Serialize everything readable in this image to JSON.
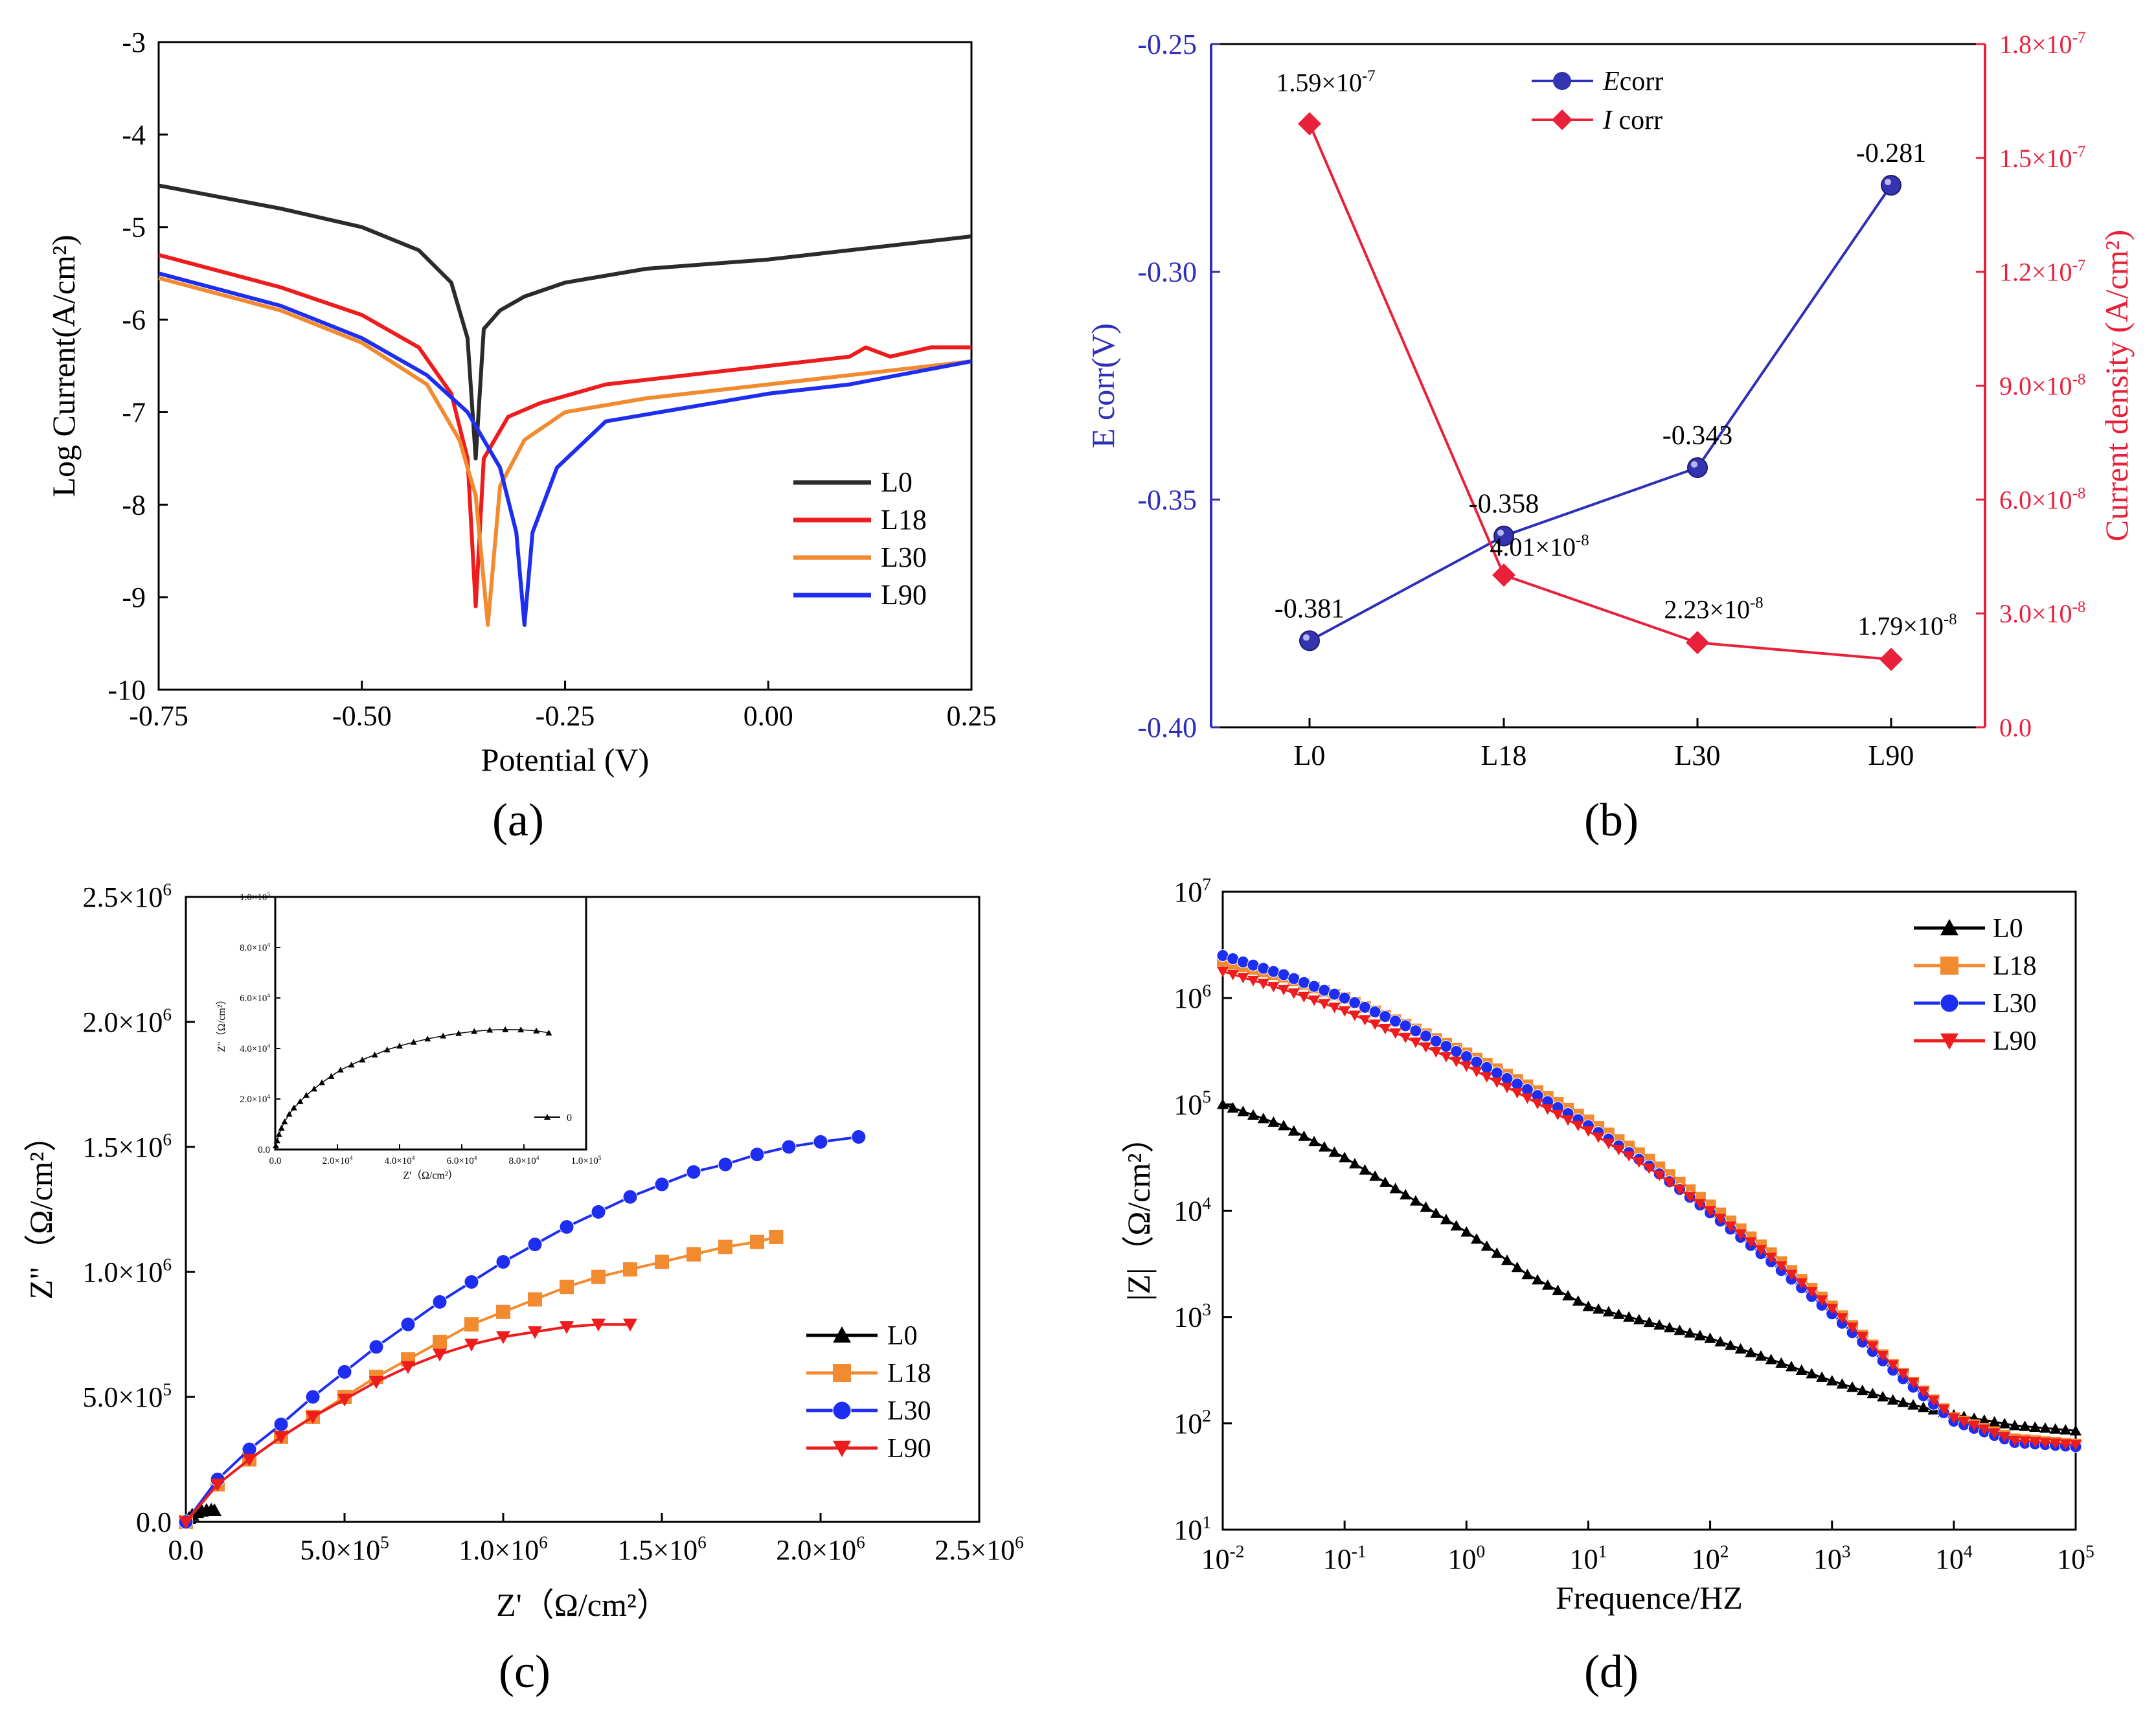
{
  "panels": {
    "a": "(a)",
    "b": "(b)",
    "c": "(c)",
    "d": "(d)"
  },
  "chart_data": [
    {
      "id": "a",
      "type": "line",
      "title": "",
      "xlabel": "Potential (V)",
      "ylabel": "Log Current(A/cm²)",
      "xlim": [
        -0.75,
        0.25
      ],
      "ylim": [
        -10,
        -3
      ],
      "xticks": [
        "-0.75",
        "-0.50",
        "-0.25",
        "0.00",
        "0.25"
      ],
      "xtick_values": [
        -0.75,
        -0.5,
        -0.25,
        0.0,
        0.25
      ],
      "yticks": [
        "-3",
        "-4",
        "-5",
        "-6",
        "-7",
        "-8",
        "-9",
        "-10"
      ],
      "ytick_values": [
        -3,
        -4,
        -5,
        -6,
        -7,
        -8,
        -9,
        -10
      ],
      "legend": "bottom-right",
      "series": [
        {
          "name": "L0",
          "color": "#2b2b2b",
          "x": [
            -0.75,
            -0.6,
            -0.5,
            -0.43,
            -0.39,
            -0.37,
            -0.36,
            -0.35,
            -0.33,
            -0.3,
            -0.25,
            -0.15,
            0.0,
            0.1,
            0.25
          ],
          "y": [
            -4.55,
            -4.8,
            -5.0,
            -5.25,
            -5.6,
            -6.2,
            -7.5,
            -6.1,
            -5.9,
            -5.75,
            -5.6,
            -5.45,
            -5.35,
            -5.25,
            -5.1
          ]
        },
        {
          "name": "L18",
          "color": "#ee1c1c",
          "x": [
            -0.75,
            -0.6,
            -0.5,
            -0.43,
            -0.39,
            -0.37,
            -0.36,
            -0.35,
            -0.32,
            -0.28,
            -0.2,
            -0.1,
            0.0,
            0.1,
            0.12,
            0.15,
            0.2,
            0.25
          ],
          "y": [
            -5.3,
            -5.65,
            -5.95,
            -6.3,
            -6.8,
            -7.5,
            -9.1,
            -7.5,
            -7.05,
            -6.9,
            -6.7,
            -6.6,
            -6.5,
            -6.4,
            -6.3,
            -6.4,
            -6.3,
            -6.3
          ]
        },
        {
          "name": "L30",
          "color": "#f28a30",
          "x": [
            -0.75,
            -0.6,
            -0.5,
            -0.42,
            -0.38,
            -0.36,
            -0.345,
            -0.33,
            -0.3,
            -0.25,
            -0.15,
            0.0,
            0.1,
            0.25
          ],
          "y": [
            -5.55,
            -5.9,
            -6.25,
            -6.7,
            -7.3,
            -7.9,
            -9.3,
            -7.8,
            -7.3,
            -7.0,
            -6.85,
            -6.7,
            -6.6,
            -6.45
          ]
        },
        {
          "name": "L90",
          "color": "#1e2ef0",
          "x": [
            -0.75,
            -0.6,
            -0.5,
            -0.42,
            -0.37,
            -0.33,
            -0.31,
            -0.3,
            -0.29,
            -0.26,
            -0.2,
            -0.1,
            0.0,
            0.1,
            0.25
          ],
          "y": [
            -5.5,
            -5.85,
            -6.2,
            -6.6,
            -7.0,
            -7.6,
            -8.3,
            -9.3,
            -8.3,
            -7.6,
            -7.1,
            -6.95,
            -6.8,
            -6.7,
            -6.45
          ]
        }
      ]
    },
    {
      "id": "b",
      "type": "line",
      "title": "",
      "xlabel": "",
      "ylabel": "E corr(V)",
      "y2label": "Current density (A/cm²)",
      "categories": [
        "L0",
        "L18",
        "L30",
        "L90"
      ],
      "ylim": [
        -0.4,
        -0.25
      ],
      "y2lim": [
        0,
        1.8e-07
      ],
      "yticks": [
        "-0.25",
        "-0.30",
        "-0.35",
        "-0.40"
      ],
      "ytick_values": [
        -0.25,
        -0.3,
        -0.35,
        -0.4
      ],
      "y2ticks": [
        "1.8×10",
        "1.5×10",
        "1.2×10",
        "9.0×10",
        "6.0×10",
        "3.0×10",
        "0.0"
      ],
      "y2tick_exps": [
        "-7",
        "-7",
        "-7",
        "-8",
        "-8",
        "-8",
        ""
      ],
      "y2tick_values": [
        1.8e-07,
        1.5e-07,
        1.2e-07,
        9e-08,
        6e-08,
        3e-08,
        0
      ],
      "legend": "top-center",
      "series": [
        {
          "name_italic": "E",
          "name_rest": "corr",
          "color": "#2e2eb8",
          "axis": "left",
          "values": [
            -0.381,
            -0.358,
            -0.343,
            -0.281
          ],
          "labels": [
            "-0.381",
            "-0.358",
            "-0.343",
            "-0.281"
          ]
        },
        {
          "name_italic": "I",
          "name_rest": " corr",
          "color": "#e8203a",
          "axis": "right",
          "values": [
            1.59e-07,
            4.01e-08,
            2.23e-08,
            1.79e-08
          ],
          "labels": [
            "1.59×10",
            "4.01×10",
            "2.23×10",
            "1.79×10"
          ],
          "label_exps": [
            "-7",
            "-8",
            "-8",
            "-8"
          ]
        }
      ]
    },
    {
      "id": "c",
      "type": "scatter",
      "title": "",
      "xlabel": "Z'（Ω/cm²）",
      "ylabel": "Z\"（Ω/cm²）",
      "xlim": [
        0,
        2500000
      ],
      "ylim": [
        0,
        2500000
      ],
      "xticks": [
        "0.0",
        "5.0×10",
        "1.0×10",
        "1.5×10",
        "2.0×10",
        "2.5×10"
      ],
      "xtick_exps": [
        "",
        "5",
        "6",
        "6",
        "6",
        "6"
      ],
      "xtick_values": [
        0,
        500000,
        1000000,
        1500000,
        2000000,
        2500000
      ],
      "yticks": [
        "0.0",
        "5.0×10",
        "1.0×10",
        "1.5×10",
        "2.0×10",
        "2.5×10"
      ],
      "ytick_exps": [
        "",
        "5",
        "6",
        "6",
        "6",
        "6"
      ],
      "ytick_values": [
        0,
        500000,
        1000000,
        1500000,
        2000000,
        2500000
      ],
      "legend": "bottom-right",
      "series": [
        {
          "name": "L0",
          "color": "#000000",
          "marker": "triangle",
          "x": [
            0,
            10000,
            20000,
            35000,
            50000,
            65000,
            80000,
            90000
          ],
          "y": [
            0,
            15000,
            28000,
            38000,
            44000,
            47000,
            48000,
            46000
          ]
        },
        {
          "name": "L18",
          "color": "#f28a30",
          "marker": "square",
          "x": [
            0,
            100000,
            200000,
            300000,
            400000,
            500000,
            600000,
            700000,
            800000,
            900000,
            1000000,
            1100000,
            1200000,
            1300000,
            1400000,
            1500000,
            1600000,
            1700000,
            1800000,
            1860000
          ],
          "y": [
            0,
            150000,
            250000,
            340000,
            420000,
            500000,
            580000,
            650000,
            720000,
            790000,
            840000,
            890000,
            940000,
            980000,
            1010000,
            1040000,
            1070000,
            1100000,
            1120000,
            1140000
          ]
        },
        {
          "name": "L30",
          "color": "#1e2ef0",
          "marker": "circle",
          "x": [
            0,
            100000,
            200000,
            300000,
            400000,
            500000,
            600000,
            700000,
            800000,
            900000,
            1000000,
            1100000,
            1200000,
            1300000,
            1400000,
            1500000,
            1600000,
            1700000,
            1800000,
            1900000,
            2000000,
            2120000
          ],
          "y": [
            0,
            170000,
            290000,
            390000,
            500000,
            600000,
            700000,
            790000,
            880000,
            960000,
            1040000,
            1110000,
            1180000,
            1240000,
            1300000,
            1350000,
            1400000,
            1430000,
            1470000,
            1500000,
            1520000,
            1540000
          ]
        },
        {
          "name": "L90",
          "color": "#ee1c1c",
          "marker": "down-triangle",
          "x": [
            0,
            100000,
            200000,
            300000,
            400000,
            500000,
            600000,
            700000,
            800000,
            900000,
            1000000,
            1100000,
            1200000,
            1300000,
            1400000
          ],
          "y": [
            0,
            150000,
            250000,
            340000,
            420000,
            490000,
            560000,
            620000,
            670000,
            710000,
            740000,
            760000,
            780000,
            790000,
            790000
          ]
        }
      ],
      "inset": {
        "xlabel": "Z'（Ω/cm²）",
        "ylabel": "Z\"（Ω/cm²）",
        "xlim": [
          0,
          100000
        ],
        "ylim": [
          0,
          100000
        ],
        "xticks": [
          "0.0",
          "2.0×10",
          "4.0×10",
          "6.0×10",
          "8.0×10",
          "1.0×10"
        ],
        "xtick_exps": [
          "",
          "4",
          "4",
          "4",
          "4",
          "5"
        ],
        "xtick_values": [
          0,
          20000,
          40000,
          60000,
          80000,
          100000
        ],
        "yticks": [
          "0.0",
          "2.0×10",
          "4.0×10",
          "6.0×10",
          "8.0×10",
          "1.0×10"
        ],
        "ytick_exps": [
          "",
          "4",
          "4",
          "4",
          "4",
          "5"
        ],
        "ytick_values": [
          0,
          20000,
          40000,
          60000,
          80000,
          100000
        ],
        "legend": "0",
        "series": [
          {
            "name": "0",
            "color": "#000000",
            "x": [
              200,
              600,
              1200,
              2000,
              3000,
              4500,
              6000,
              8000,
              10000,
              12500,
              15000,
              18000,
              21000,
              24500,
              28000,
              32000,
              36000,
              40000,
              44500,
              49000,
              54000,
              59000,
              64000,
              69000,
              74000,
              79000,
              84000,
              88000
            ],
            "y": [
              1500,
              3500,
              6000,
              8500,
              11000,
              14000,
              16500,
              19000,
              21500,
              24000,
              26500,
              29000,
              31500,
              33500,
              35500,
              37500,
              39500,
              41000,
              42500,
              43800,
              45000,
              46000,
              46800,
              47300,
              47500,
              47400,
              47000,
              46200
            ]
          }
        ]
      }
    },
    {
      "id": "d",
      "type": "line",
      "title": "",
      "xlabel": "Frequence/HZ",
      "ylabel": "|Z|（Ω/cm²）",
      "xscale": "log",
      "yscale": "log",
      "xlim_exp": [
        -2,
        5
      ],
      "ylim_exp": [
        1,
        7
      ],
      "xtick_exps": [
        "-2",
        "-1",
        "0",
        "1",
        "2",
        "3",
        "4",
        "5"
      ],
      "ytick_exps": [
        "7",
        "6",
        "5",
        "4",
        "3",
        "2",
        "1"
      ],
      "tick_base": "10",
      "legend": "top-right",
      "series": [
        {
          "name": "L0",
          "color": "#000000",
          "marker": "triangle",
          "log_f": [
            -2,
            -1.5,
            -1,
            -0.5,
            0,
            0.5,
            1,
            1.5,
            2,
            2.5,
            3,
            3.5,
            4,
            4.5,
            5
          ],
          "log_z": [
            5.0,
            4.8,
            4.5,
            4.15,
            3.8,
            3.4,
            3.1,
            2.95,
            2.8,
            2.6,
            2.4,
            2.22,
            2.08,
            1.98,
            1.93
          ]
        },
        {
          "name": "L18",
          "color": "#f28a30",
          "marker": "square",
          "log_f": [
            -2,
            -1.5,
            -1,
            -0.5,
            0,
            0.5,
            1,
            1.5,
            2,
            2.5,
            3,
            3.5,
            4,
            4.5,
            5
          ],
          "log_z": [
            6.35,
            6.2,
            6.0,
            5.75,
            5.48,
            5.18,
            4.85,
            4.48,
            4.05,
            3.6,
            3.1,
            2.55,
            2.05,
            1.85,
            1.8
          ]
        },
        {
          "name": "L30",
          "color": "#1e2ef0",
          "marker": "circle",
          "log_f": [
            -2,
            -1.5,
            -1,
            -0.5,
            0,
            0.5,
            1,
            1.5,
            2,
            2.5,
            3,
            3.5,
            4,
            4.5,
            5
          ],
          "log_z": [
            6.4,
            6.22,
            6.0,
            5.74,
            5.45,
            5.14,
            4.8,
            4.42,
            3.98,
            3.52,
            3.03,
            2.5,
            2.02,
            1.82,
            1.78
          ]
        },
        {
          "name": "L90",
          "color": "#ee1c1c",
          "marker": "down-triangle",
          "log_f": [
            -2,
            -1.5,
            -1,
            -0.5,
            0,
            0.5,
            1,
            1.5,
            2,
            2.5,
            3,
            3.5,
            4,
            4.5,
            5
          ],
          "log_z": [
            6.25,
            6.08,
            5.88,
            5.63,
            5.36,
            5.06,
            4.75,
            4.4,
            4.0,
            3.56,
            3.08,
            2.55,
            2.05,
            1.84,
            1.8
          ]
        }
      ]
    }
  ]
}
